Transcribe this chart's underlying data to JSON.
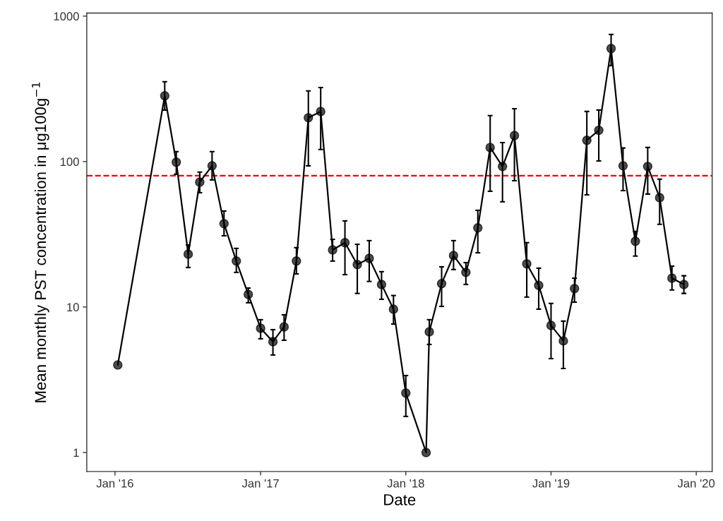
{
  "chart_data": {
    "type": "line",
    "xlabel": "Date",
    "ylabel": "Mean monthly PST concentration in μg100g$^{−1}$",
    "log": "y",
    "grid": false,
    "marker": "circle",
    "line_style": "solid",
    "xlim": [
      "2015-10-22",
      "2020-02-10"
    ],
    "ylim": [
      0.74,
      1050
    ],
    "xticks": [
      {
        "value": "2016-01-01",
        "label": "Jan '16"
      },
      {
        "value": "2017-01-01",
        "label": "Jan '17"
      },
      {
        "value": "2018-01-01",
        "label": "Jan '18"
      },
      {
        "value": "2019-01-01",
        "label": "Jan '19"
      },
      {
        "value": "2020-01-01",
        "label": "Jan '20"
      }
    ],
    "yticks": [
      1,
      10,
      100,
      1000
    ],
    "ref_lines": [
      {
        "axis": "y",
        "value": 80,
        "color": "#ff0000",
        "line_style": "dashed"
      }
    ],
    "x": [
      "2016-01-08",
      "2016-05-05",
      "2016-06-03",
      "2016-07-03",
      "2016-08-01",
      "2016-09-01",
      "2016-10-01",
      "2016-11-01",
      "2016-12-01",
      "2017-01-01",
      "2017-02-01",
      "2017-03-01",
      "2017-04-01",
      "2017-05-01",
      "2017-06-01",
      "2017-07-01",
      "2017-08-01",
      "2017-09-01",
      "2017-10-01",
      "2017-11-01",
      "2017-12-01",
      "2018-01-01",
      "2018-02-21",
      "2018-03-01",
      "2018-04-01",
      "2018-05-01",
      "2018-06-01",
      "2018-07-01",
      "2018-08-01",
      "2018-09-01",
      "2018-10-01",
      "2018-11-01",
      "2018-12-01",
      "2019-01-01",
      "2019-02-01",
      "2019-03-01",
      "2019-04-01",
      "2019-05-01",
      "2019-06-01",
      "2019-07-01",
      "2019-08-01",
      "2019-09-01",
      "2019-10-01",
      "2019-11-01",
      "2019-12-01"
    ],
    "series": [
      {
        "color": "#000000",
        "values": [
          4.0,
          283,
          99,
          23.1,
          72.3,
          93.5,
          37.4,
          20.7,
          12.2,
          7.15,
          5.78,
          7.31,
          20.7,
          200,
          221,
          24.7,
          27.7,
          19.6,
          21.6,
          14.3,
          9.67,
          2.56,
          1.0,
          6.76,
          14.5,
          22.6,
          17.3,
          35.0,
          125,
          92.5,
          151,
          19.8,
          14.1,
          7.48,
          5.85,
          13.4,
          140,
          164,
          598,
          93.5,
          28.3,
          92.5,
          56.5,
          15.8,
          14.3
        ],
        "errors": [
          null,
          [
            226,
            354
          ],
          [
            81.8,
            117
          ],
          [
            18.7,
            26.7
          ],
          [
            61.1,
            84.6
          ],
          [
            74.8,
            117
          ],
          [
            30.9,
            45.7
          ],
          [
            17.3,
            25.3
          ],
          [
            10.7,
            13.5
          ],
          [
            6.05,
            8.18
          ],
          [
            4.68,
            6.99
          ],
          [
            5.91,
            8.84
          ],
          [
            16.9,
            25.6
          ],
          [
            93.5,
            306
          ],
          [
            121,
            323
          ],
          [
            20.7,
            29.2
          ],
          [
            16.7,
            39.1
          ],
          [
            12.4,
            27.0
          ],
          [
            15.0,
            28.6
          ],
          [
            11.3,
            17.5
          ],
          [
            7.64,
            12.0
          ],
          [
            1.77,
            3.38
          ],
          null,
          [
            5.53,
            8.18
          ],
          [
            10.1,
            18.9
          ],
          [
            18.1,
            28.6
          ],
          [
            14.3,
            20.2
          ],
          [
            23.6,
            46.2
          ],
          [
            62.5,
            207
          ],
          [
            52.9,
            135
          ],
          [
            73.9,
            231
          ],
          [
            11.7,
            27.7
          ],
          [
            9.67,
            18.5
          ],
          [
            4.42,
            10.6
          ],
          [
            3.78,
            8.0
          ],
          [
            10.8,
            15.8
          ],
          [
            59.1,
            221
          ],
          [
            101,
            226
          ],
          [
            457,
            748
          ],
          [
            63.2,
            124
          ],
          [
            22.4,
            33.1
          ],
          [
            59.8,
            125
          ],
          [
            37.0,
            75.7
          ],
          [
            13.1,
            19.1
          ],
          [
            12.4,
            16.4
          ]
        ]
      }
    ]
  }
}
